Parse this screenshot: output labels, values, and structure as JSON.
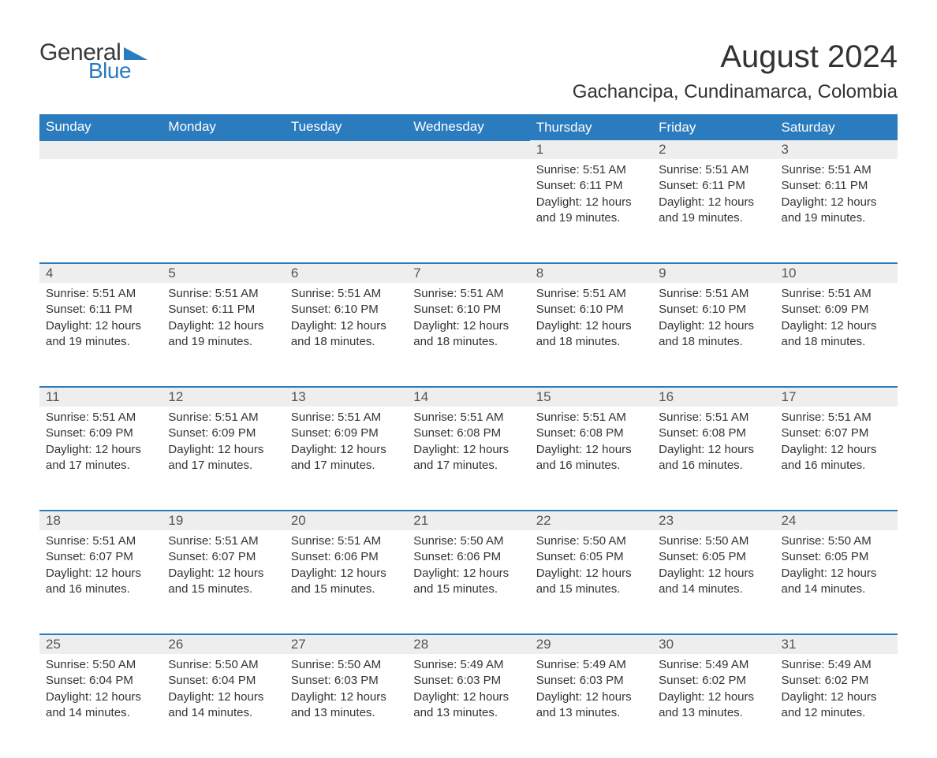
{
  "logo": {
    "general": "General",
    "blue": "Blue",
    "accent_color": "#2b7bbf"
  },
  "title": "August 2024",
  "subtitle": "Gachancipa, Cundinamarca, Colombia",
  "columns": [
    "Sunday",
    "Monday",
    "Tuesday",
    "Wednesday",
    "Thursday",
    "Friday",
    "Saturday"
  ],
  "header_bg": "#2b7bbf",
  "header_fg": "#ffffff",
  "daynum_bg": "#eeeeee",
  "row_divider": "#2b7bbf",
  "text_color": "#333333",
  "weeks": [
    [
      null,
      null,
      null,
      null,
      {
        "n": "1",
        "sunrise": "5:51 AM",
        "sunset": "6:11 PM",
        "daylight": "12 hours and 19 minutes."
      },
      {
        "n": "2",
        "sunrise": "5:51 AM",
        "sunset": "6:11 PM",
        "daylight": "12 hours and 19 minutes."
      },
      {
        "n": "3",
        "sunrise": "5:51 AM",
        "sunset": "6:11 PM",
        "daylight": "12 hours and 19 minutes."
      }
    ],
    [
      {
        "n": "4",
        "sunrise": "5:51 AM",
        "sunset": "6:11 PM",
        "daylight": "12 hours and 19 minutes."
      },
      {
        "n": "5",
        "sunrise": "5:51 AM",
        "sunset": "6:11 PM",
        "daylight": "12 hours and 19 minutes."
      },
      {
        "n": "6",
        "sunrise": "5:51 AM",
        "sunset": "6:10 PM",
        "daylight": "12 hours and 18 minutes."
      },
      {
        "n": "7",
        "sunrise": "5:51 AM",
        "sunset": "6:10 PM",
        "daylight": "12 hours and 18 minutes."
      },
      {
        "n": "8",
        "sunrise": "5:51 AM",
        "sunset": "6:10 PM",
        "daylight": "12 hours and 18 minutes."
      },
      {
        "n": "9",
        "sunrise": "5:51 AM",
        "sunset": "6:10 PM",
        "daylight": "12 hours and 18 minutes."
      },
      {
        "n": "10",
        "sunrise": "5:51 AM",
        "sunset": "6:09 PM",
        "daylight": "12 hours and 18 minutes."
      }
    ],
    [
      {
        "n": "11",
        "sunrise": "5:51 AM",
        "sunset": "6:09 PM",
        "daylight": "12 hours and 17 minutes."
      },
      {
        "n": "12",
        "sunrise": "5:51 AM",
        "sunset": "6:09 PM",
        "daylight": "12 hours and 17 minutes."
      },
      {
        "n": "13",
        "sunrise": "5:51 AM",
        "sunset": "6:09 PM",
        "daylight": "12 hours and 17 minutes."
      },
      {
        "n": "14",
        "sunrise": "5:51 AM",
        "sunset": "6:08 PM",
        "daylight": "12 hours and 17 minutes."
      },
      {
        "n": "15",
        "sunrise": "5:51 AM",
        "sunset": "6:08 PM",
        "daylight": "12 hours and 16 minutes."
      },
      {
        "n": "16",
        "sunrise": "5:51 AM",
        "sunset": "6:08 PM",
        "daylight": "12 hours and 16 minutes."
      },
      {
        "n": "17",
        "sunrise": "5:51 AM",
        "sunset": "6:07 PM",
        "daylight": "12 hours and 16 minutes."
      }
    ],
    [
      {
        "n": "18",
        "sunrise": "5:51 AM",
        "sunset": "6:07 PM",
        "daylight": "12 hours and 16 minutes."
      },
      {
        "n": "19",
        "sunrise": "5:51 AM",
        "sunset": "6:07 PM",
        "daylight": "12 hours and 15 minutes."
      },
      {
        "n": "20",
        "sunrise": "5:51 AM",
        "sunset": "6:06 PM",
        "daylight": "12 hours and 15 minutes."
      },
      {
        "n": "21",
        "sunrise": "5:50 AM",
        "sunset": "6:06 PM",
        "daylight": "12 hours and 15 minutes."
      },
      {
        "n": "22",
        "sunrise": "5:50 AM",
        "sunset": "6:05 PM",
        "daylight": "12 hours and 15 minutes."
      },
      {
        "n": "23",
        "sunrise": "5:50 AM",
        "sunset": "6:05 PM",
        "daylight": "12 hours and 14 minutes."
      },
      {
        "n": "24",
        "sunrise": "5:50 AM",
        "sunset": "6:05 PM",
        "daylight": "12 hours and 14 minutes."
      }
    ],
    [
      {
        "n": "25",
        "sunrise": "5:50 AM",
        "sunset": "6:04 PM",
        "daylight": "12 hours and 14 minutes."
      },
      {
        "n": "26",
        "sunrise": "5:50 AM",
        "sunset": "6:04 PM",
        "daylight": "12 hours and 14 minutes."
      },
      {
        "n": "27",
        "sunrise": "5:50 AM",
        "sunset": "6:03 PM",
        "daylight": "12 hours and 13 minutes."
      },
      {
        "n": "28",
        "sunrise": "5:49 AM",
        "sunset": "6:03 PM",
        "daylight": "12 hours and 13 minutes."
      },
      {
        "n": "29",
        "sunrise": "5:49 AM",
        "sunset": "6:03 PM",
        "daylight": "12 hours and 13 minutes."
      },
      {
        "n": "30",
        "sunrise": "5:49 AM",
        "sunset": "6:02 PM",
        "daylight": "12 hours and 13 minutes."
      },
      {
        "n": "31",
        "sunrise": "5:49 AM",
        "sunset": "6:02 PM",
        "daylight": "12 hours and 12 minutes."
      }
    ]
  ],
  "labels": {
    "sunrise": "Sunrise: ",
    "sunset": "Sunset: ",
    "daylight": "Daylight: "
  }
}
